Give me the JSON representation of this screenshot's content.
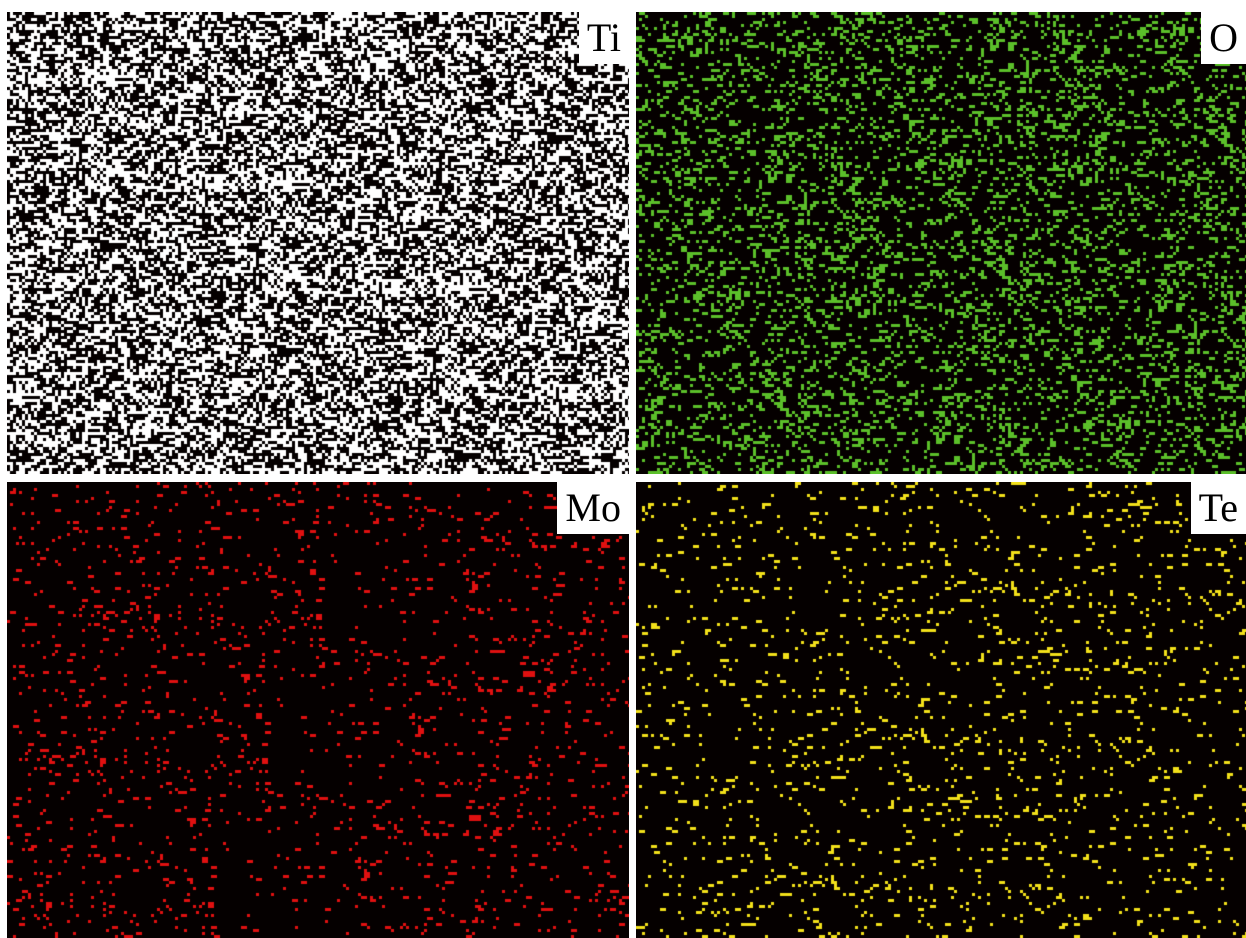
{
  "figure": {
    "panels": [
      {
        "id": "ti",
        "element": "Ti",
        "dot_color": "#ffffff",
        "density": "high"
      },
      {
        "id": "o",
        "element": "O",
        "dot_color": "#5bbf2a",
        "density": "medium"
      },
      {
        "id": "mo",
        "element": "Mo",
        "dot_color": "#e01010",
        "density": "low"
      },
      {
        "id": "te",
        "element": "Te",
        "dot_color": "#f2e01a",
        "density": "low"
      }
    ],
    "background_color": "#050000"
  }
}
